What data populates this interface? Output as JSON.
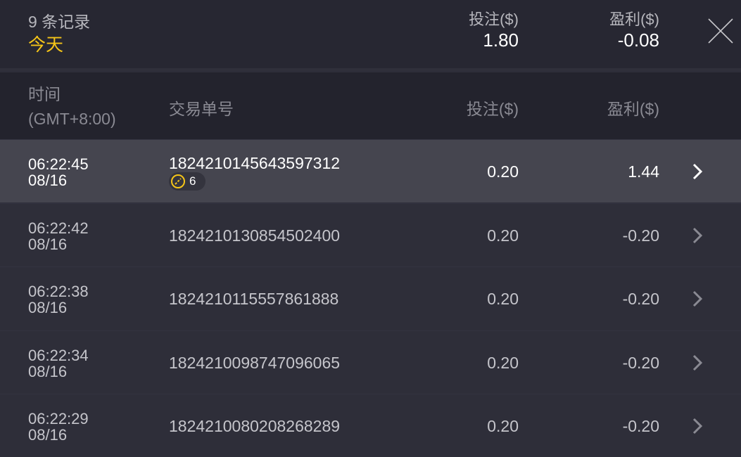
{
  "summary": {
    "record_count": "9 条记录",
    "period": "今天",
    "stake_label": "投注($)",
    "stake_total": "1.80",
    "profit_label": "盈利($)",
    "profit_total": "-0.08"
  },
  "columns": {
    "time": "时间",
    "timezone": "(GMT+8:00)",
    "order_id": "交易单号",
    "stake": "投注($)",
    "profit": "盈利($)"
  },
  "colors": {
    "accent": "#f5c518",
    "selected_row": "#45454f",
    "row": "#2e2e39"
  },
  "rows": [
    {
      "time": "06:22:45",
      "date": "08/16",
      "order_id": "1824210145643597312",
      "badge_count": "6",
      "stake": "0.20",
      "profit": "1.44",
      "selected": true
    },
    {
      "time": "06:22:42",
      "date": "08/16",
      "order_id": "1824210130854502400",
      "stake": "0.20",
      "profit": "-0.20"
    },
    {
      "time": "06:22:38",
      "date": "08/16",
      "order_id": "1824210115557861888",
      "stake": "0.20",
      "profit": "-0.20"
    },
    {
      "time": "06:22:34",
      "date": "08/16",
      "order_id": "1824210098747096065",
      "stake": "0.20",
      "profit": "-0.20"
    },
    {
      "time": "06:22:29",
      "date": "08/16",
      "order_id": "1824210080208268289",
      "stake": "0.20",
      "profit": "-0.20"
    }
  ]
}
